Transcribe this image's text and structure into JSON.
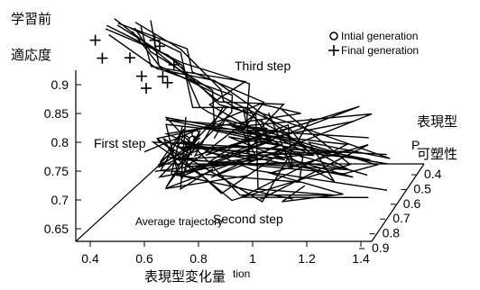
{
  "chart_data": {
    "type": "line",
    "title": "",
    "axes": {
      "z": {
        "label_top": "学習前",
        "label": "適応度",
        "ticks": [
          0.65,
          0.7,
          0.75,
          0.8,
          0.85,
          0.9
        ]
      },
      "x": {
        "label": "表現型変化量",
        "label_overlap": "tion",
        "ticks": [
          0.4,
          0.6,
          0.8,
          1,
          1.2,
          1.4
        ]
      },
      "y": {
        "label_top": "表現型",
        "label_top_overlap": "P",
        "label": "可塑性",
        "ticks": [
          0.4,
          0.5,
          0.6,
          0.7,
          0.8,
          0.9
        ]
      }
    },
    "legend": {
      "position": "top-right",
      "items": [
        {
          "marker": "circle",
          "label": "Intial generation"
        },
        {
          "marker": "plus",
          "label": "Final generation"
        }
      ]
    },
    "annotations": {
      "first_step": "First step",
      "second_step": "Second step",
      "third_step": "Third step",
      "average": "Average trajectory"
    },
    "series": [
      {
        "marker": "circle",
        "points": [
          [
            0.75,
            0.55,
            0.81
          ],
          [
            0.76,
            0.53,
            0.82
          ],
          [
            0.78,
            0.56,
            0.81
          ],
          [
            0.77,
            0.58,
            0.8
          ],
          [
            0.79,
            0.57,
            0.82
          ],
          [
            0.8,
            0.56,
            0.83
          ]
        ]
      },
      {
        "marker": "plus",
        "points": [
          [
            0.42,
            0.42,
            0.99
          ],
          [
            0.45,
            0.48,
            0.96
          ],
          [
            0.55,
            0.45,
            0.96
          ],
          [
            0.64,
            0.42,
            0.99
          ],
          [
            0.66,
            0.45,
            0.98
          ],
          [
            0.6,
            0.55,
            0.93
          ],
          [
            0.62,
            0.6,
            0.91
          ],
          [
            0.68,
            0.58,
            0.93
          ],
          [
            0.72,
            0.56,
            0.95
          ],
          [
            0.7,
            0.62,
            0.92
          ]
        ]
      }
    ]
  }
}
